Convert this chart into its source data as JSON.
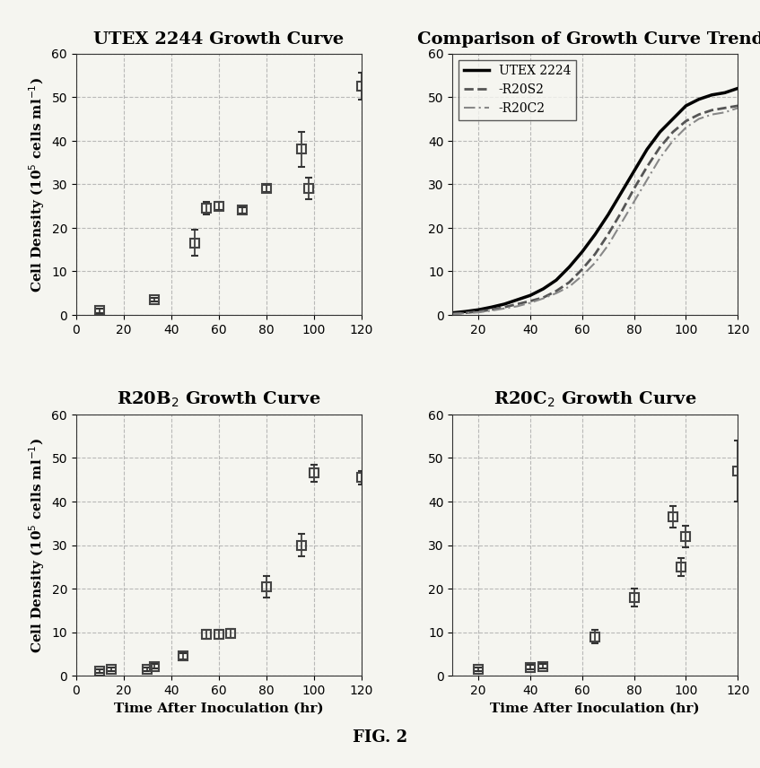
{
  "fig_label": "FIG. 2",
  "background_color": "#f5f5f0",
  "plot_background": "#f5f5f0",
  "utex_title": "UTEX 2244 Growth Curve",
  "utex_x": [
    10,
    33,
    50,
    55,
    60,
    70,
    80,
    95,
    98,
    120
  ],
  "utex_y": [
    1.0,
    3.5,
    16.5,
    24.5,
    25.0,
    24.0,
    29.0,
    38.0,
    29.0,
    52.5
  ],
  "utex_yerr": [
    0.5,
    0.5,
    3.0,
    1.5,
    1.0,
    0.8,
    0.8,
    4.0,
    2.5,
    3.0
  ],
  "utex_ylim": [
    0,
    60
  ],
  "utex_xlim": [
    0,
    120
  ],
  "comp_title": "Comparison of Growth Curve Trends",
  "comp_utex_x": [
    10,
    15,
    20,
    25,
    30,
    35,
    40,
    45,
    50,
    55,
    60,
    65,
    70,
    75,
    80,
    85,
    90,
    95,
    100,
    105,
    110,
    115,
    120
  ],
  "comp_utex_y": [
    0.5,
    0.8,
    1.2,
    1.8,
    2.5,
    3.5,
    4.5,
    6.0,
    8.0,
    11.0,
    14.5,
    18.5,
    23.0,
    28.0,
    33.0,
    38.0,
    42.0,
    45.0,
    48.0,
    49.5,
    50.5,
    51.0,
    52.0
  ],
  "comp_r20s2_x": [
    10,
    15,
    20,
    25,
    30,
    35,
    40,
    45,
    50,
    55,
    60,
    65,
    70,
    75,
    80,
    85,
    90,
    95,
    100,
    105,
    110,
    115,
    120
  ],
  "comp_r20s2_y": [
    0.3,
    0.5,
    0.8,
    1.2,
    1.8,
    2.5,
    3.2,
    4.0,
    5.5,
    7.5,
    10.5,
    14.0,
    18.5,
    23.5,
    29.0,
    34.0,
    38.5,
    42.0,
    44.5,
    46.0,
    47.0,
    47.5,
    48.0
  ],
  "comp_r20c2_x": [
    10,
    15,
    20,
    25,
    30,
    35,
    40,
    45,
    50,
    55,
    60,
    65,
    70,
    75,
    80,
    85,
    90,
    95,
    100,
    105,
    110,
    115,
    120
  ],
  "comp_r20c2_y": [
    0.2,
    0.4,
    0.6,
    1.0,
    1.5,
    2.0,
    2.8,
    3.8,
    5.0,
    6.5,
    9.0,
    12.0,
    16.0,
    21.0,
    26.0,
    31.0,
    36.0,
    40.0,
    43.0,
    45.0,
    46.0,
    46.5,
    47.5
  ],
  "comp_ylim": [
    0,
    60
  ],
  "comp_xlim": [
    10,
    120
  ],
  "r20b2_title": "R20B$_2$ Growth Curve",
  "r20b2_x": [
    10,
    15,
    30,
    33,
    45,
    55,
    60,
    65,
    80,
    95,
    100,
    120
  ],
  "r20b2_y": [
    1.0,
    1.5,
    1.5,
    2.2,
    4.5,
    9.5,
    9.5,
    9.8,
    20.5,
    30.0,
    46.5,
    45.5
  ],
  "r20b2_yerr": [
    0.4,
    0.4,
    0.5,
    0.5,
    0.8,
    1.0,
    1.0,
    1.0,
    2.5,
    2.5,
    2.0,
    1.5
  ],
  "r20b2_ylim": [
    0,
    60
  ],
  "r20b2_xlim": [
    0,
    120
  ],
  "r20c2_title": "R20C$_2$ Growth Curve",
  "r20c2_x": [
    20,
    40,
    45,
    65,
    80,
    95,
    98,
    100,
    120
  ],
  "r20c2_y": [
    1.5,
    2.0,
    2.2,
    9.0,
    18.0,
    36.5,
    25.0,
    32.0,
    47.0
  ],
  "r20c2_yerr": [
    0.5,
    0.5,
    0.5,
    1.5,
    2.0,
    2.5,
    2.0,
    2.5,
    7.0
  ],
  "r20c2_ylim": [
    0,
    60
  ],
  "r20c2_xlim": [
    10,
    120
  ],
  "xlabel": "Time After Inoculation (hr)",
  "ylabel": "Cell Density (10$^5$ cells ml$^{-1}$)",
  "tick_color": "#555555",
  "marker_color": "#555555",
  "line_color_utex": "#000000",
  "line_color_r20s2": "#555555",
  "line_color_r20c2": "#888888",
  "grid_color": "#aaaaaa",
  "title_fontsize": 14,
  "label_fontsize": 11,
  "tick_fontsize": 10,
  "legend_fontsize": 10
}
